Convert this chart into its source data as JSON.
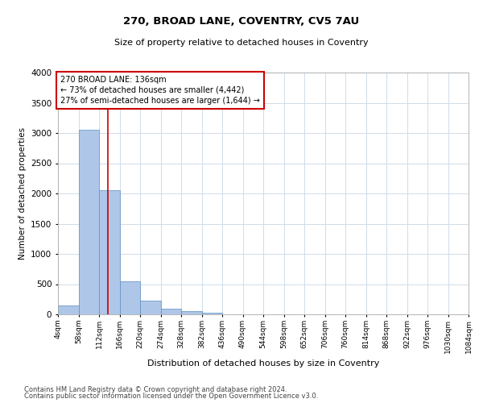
{
  "title1": "270, BROAD LANE, COVENTRY, CV5 7AU",
  "title2": "Size of property relative to detached houses in Coventry",
  "xlabel": "Distribution of detached houses by size in Coventry",
  "ylabel": "Number of detached properties",
  "bin_edges": [
    4,
    58,
    112,
    166,
    220,
    274,
    328,
    382,
    436,
    490,
    544,
    598,
    652,
    706,
    760,
    814,
    868,
    922,
    976,
    1030,
    1084
  ],
  "bar_heights": [
    150,
    3050,
    2050,
    550,
    225,
    90,
    50,
    30,
    5,
    0,
    0,
    0,
    0,
    0,
    0,
    0,
    0,
    0,
    0,
    0
  ],
  "bar_color": "#aec6e8",
  "bar_edge_color": "#5a8fc2",
  "property_size": 136,
  "red_line_color": "#cc0000",
  "annotation_line1": "270 BROAD LANE: 136sqm",
  "annotation_line2": "← 73% of detached houses are smaller (4,442)",
  "annotation_line3": "27% of semi-detached houses are larger (1,644) →",
  "annotation_box_color": "#cc0000",
  "ylim": [
    0,
    4000
  ],
  "yticks": [
    0,
    500,
    1000,
    1500,
    2000,
    2500,
    3000,
    3500,
    4000
  ],
  "footer1": "Contains HM Land Registry data © Crown copyright and database right 2024.",
  "footer2": "Contains public sector information licensed under the Open Government Licence v3.0.",
  "bg_color": "#ffffff",
  "grid_color": "#d0dce8"
}
